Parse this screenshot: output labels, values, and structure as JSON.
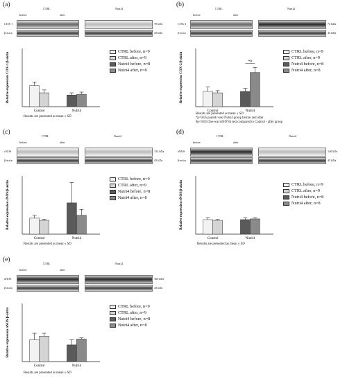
{
  "legend": [
    {
      "label": "CTRL before, n=9",
      "color": "#f2f2f2"
    },
    {
      "label": "CTRL after, n=9",
      "color": "#d4d4d4"
    },
    {
      "label": "Nutri4 before, n=8",
      "color": "#5a5a5a"
    },
    {
      "label": "Nutri4 after, n=8",
      "color": "#8a8a8a"
    }
  ],
  "blot_groups": {
    "ctrl": "CTRL",
    "nutri": "Nutri4",
    "before": "before",
    "after": "after",
    "actin": "β-actin",
    "actin_kda": "45 kDa"
  },
  "mean_sd_note": "Results are presented as mean ± SD",
  "panel_b_notes": [
    "*p<0.05 paired t-test Nutri4 group before and after",
    "#p<0.05 One-wayANOVA test compared to Control - after group"
  ],
  "panel_b_sig": "*#",
  "chart_data": [
    {
      "panel": "(a)",
      "type": "bar",
      "protein": "COX-1",
      "kda": "70 kDa",
      "ylabel": "Relative expression COX-1/β-aktin",
      "categories": [
        "Control",
        "Nutri4"
      ],
      "ylim": [
        0,
        4
      ],
      "series": [
        {
          "name": "CTRL before, n=9",
          "values": [
            1.45,
            null
          ],
          "errors": [
            0.25,
            null
          ]
        },
        {
          "name": "CTRL after, n=9",
          "values": [
            0.95,
            null
          ],
          "errors": [
            0.2,
            null
          ]
        },
        {
          "name": "Nutri4 before, n=8",
          "values": [
            null,
            0.8
          ],
          "errors": [
            null,
            0.15
          ]
        },
        {
          "name": "Nutri4 after, n=8",
          "values": [
            null,
            0.85
          ],
          "errors": [
            null,
            0.15
          ]
        }
      ]
    },
    {
      "panel": "(b)",
      "type": "bar",
      "protein": "COX-2",
      "kda": "72 kDa",
      "ylabel": "Relative expression COX-2/β-aktin",
      "categories": [
        "Control",
        "Nutri4"
      ],
      "ylim": [
        0,
        4
      ],
      "series": [
        {
          "name": "CTRL before, n=9",
          "values": [
            1.05,
            null
          ],
          "errors": [
            0.3,
            null
          ]
        },
        {
          "name": "CTRL after, n=9",
          "values": [
            0.95,
            null
          ],
          "errors": [
            0.15,
            null
          ]
        },
        {
          "name": "Nutri4 before, n=8",
          "values": [
            null,
            1.05
          ],
          "errors": [
            null,
            0.2
          ]
        },
        {
          "name": "Nutri4 after, n=8",
          "values": [
            null,
            2.35
          ],
          "errors": [
            null,
            0.35
          ]
        }
      ]
    },
    {
      "panel": "(c)",
      "type": "bar",
      "protein": "cNOS",
      "kda": "133 kDa",
      "ylabel": "Relative expression cNOS/β-aktin",
      "categories": [
        "Control",
        "Nutri4"
      ],
      "ylim": [
        0,
        4
      ],
      "series": [
        {
          "name": "CTRL before, n=9",
          "values": [
            1.1,
            null
          ],
          "errors": [
            0.2,
            null
          ]
        },
        {
          "name": "CTRL after, n=9",
          "values": [
            0.95,
            null
          ],
          "errors": [
            0.08,
            null
          ]
        },
        {
          "name": "Nutri4 before, n=8",
          "values": [
            null,
            2.15
          ],
          "errors": [
            null,
            1.4
          ]
        },
        {
          "name": "Nutri4 after, n=8",
          "values": [
            null,
            1.3
          ],
          "errors": [
            null,
            0.4
          ]
        }
      ]
    },
    {
      "panel": "(d)",
      "type": "bar",
      "protein": "eNOS",
      "kda": "140 kDa",
      "ylabel": "Relative expression eNOS/β-aktin",
      "categories": [
        "Control",
        "Nutri4"
      ],
      "ylim": [
        0,
        4
      ],
      "series": [
        {
          "name": "CTRL before, n=9",
          "values": [
            1.0,
            null
          ],
          "errors": [
            0.12,
            null
          ]
        },
        {
          "name": "CTRL after, n=9",
          "values": [
            0.95,
            null
          ],
          "errors": [
            0.06,
            null
          ]
        },
        {
          "name": "Nutri4 before, n=8",
          "values": [
            null,
            1.0
          ],
          "errors": [
            null,
            0.12
          ]
        },
        {
          "name": "Nutri4 after, n=8",
          "values": [
            null,
            1.05
          ],
          "errors": [
            null,
            0.08
          ]
        }
      ]
    },
    {
      "panel": "(e)",
      "type": "bar",
      "protein": "nNOS",
      "kda": "160 kDa",
      "ylabel": "Relative expression nNOS/β-aktin",
      "categories": [
        "Control",
        "Nutri4"
      ],
      "ylim": [
        0,
        4
      ],
      "series": [
        {
          "name": "CTRL before, n=9",
          "values": [
            1.5,
            null
          ],
          "errors": [
            0.45,
            null
          ]
        },
        {
          "name": "CTRL after, n=9",
          "values": [
            1.75,
            null
          ],
          "errors": [
            0.2,
            null
          ]
        },
        {
          "name": "Nutri4 before, n=8",
          "values": [
            null,
            1.15
          ],
          "errors": [
            null,
            0.35
          ]
        },
        {
          "name": "Nutri4 after, n=8",
          "values": [
            null,
            1.55
          ],
          "errors": [
            null,
            0.08
          ]
        }
      ]
    }
  ]
}
